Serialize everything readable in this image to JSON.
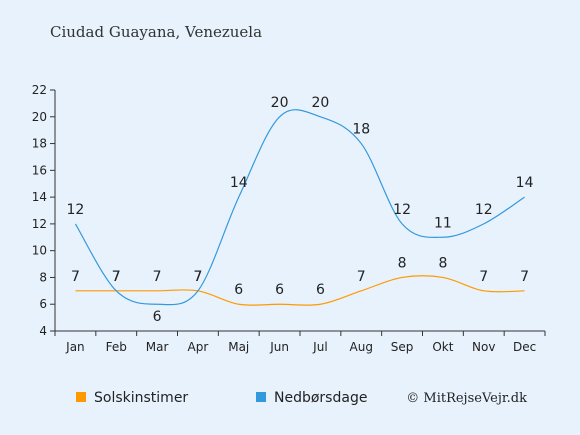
{
  "chart_data": {
    "type": "line",
    "title": "Ciudad Guayana, Venezuela",
    "categories": [
      "Jan",
      "Feb",
      "Mar",
      "Apr",
      "Maj",
      "Jun",
      "Jul",
      "Aug",
      "Sep",
      "Okt",
      "Nov",
      "Dec"
    ],
    "series": [
      {
        "name": "Solskinstimer",
        "color": "#ff9900",
        "values": [
          7,
          7,
          7,
          7,
          6,
          6,
          6,
          7,
          8,
          8,
          7,
          7
        ]
      },
      {
        "name": "Nedbørsdage",
        "color": "#3399dd",
        "values": [
          12,
          7,
          6,
          7,
          14,
          20,
          20,
          18,
          12,
          11,
          12,
          14
        ]
      }
    ],
    "yticks": [
      4,
      6,
      8,
      10,
      12,
      14,
      16,
      18,
      20,
      22
    ],
    "ylim": [
      4,
      22
    ],
    "grid": false,
    "legend_position": "bottom",
    "credit": "© MitRejseVejr.dk"
  }
}
